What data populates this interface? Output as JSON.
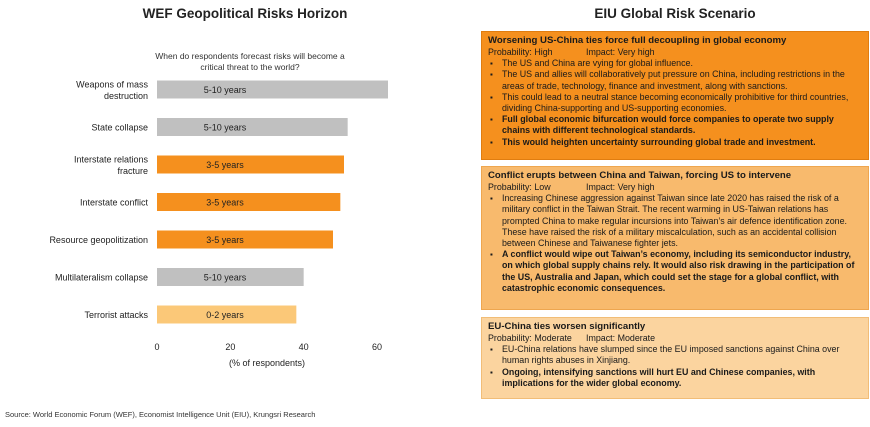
{
  "left_title": "WEF Geopolitical Risks Horizon",
  "right_title": "EIU Global Risk Scenario",
  "source": "Source: World Economic Forum (WEF), Economist Intelligence Unit (EIU), Krungsri Research",
  "chart_data": {
    "type": "bar",
    "orientation": "horizontal",
    "subtitle": "When do respondents forecast risks will become a critical threat to the world?",
    "xlabel": "(% of respondents)",
    "xlim": [
      0,
      60
    ],
    "xticks": [
      "0",
      "20",
      "40",
      "60"
    ],
    "grid": false,
    "categories": [
      {
        "label": "Weapons of mass destruction",
        "lines": [
          "Weapons of mass",
          "destruction"
        ],
        "value": 63,
        "horizon": "5-10 years",
        "color": "#c0c0c0"
      },
      {
        "label": "State collapse",
        "lines": [
          "State collapse"
        ],
        "value": 52,
        "horizon": "5-10 years",
        "color": "#c0c0c0"
      },
      {
        "label": "Interstate relations fracture",
        "lines": [
          "Interstate relations",
          "fracture"
        ],
        "value": 51,
        "horizon": "3-5 years",
        "color": "#f5901e"
      },
      {
        "label": "Interstate conflict",
        "lines": [
          "Interstate conflict"
        ],
        "value": 50,
        "horizon": "3-5 years",
        "color": "#f5901e"
      },
      {
        "label": "Resource geopolitization",
        "lines": [
          "Resource geopolitization"
        ],
        "value": 48,
        "horizon": "3-5 years",
        "color": "#f5901e"
      },
      {
        "label": "Multilateralism collapse",
        "lines": [
          "Multilateralism collapse"
        ],
        "value": 40,
        "horizon": "5-10 years",
        "color": "#c0c0c0"
      },
      {
        "label": "Terrorist attacks",
        "lines": [
          "Terrorist attacks"
        ],
        "value": 38,
        "horizon": "0-2 years",
        "color": "#fbc878"
      }
    ]
  },
  "scenarios": [
    {
      "title": "Worsening US-China ties force full decoupling in global economy",
      "probability": "Probability: High",
      "impact": "Impact: Very high",
      "color": "#f5901e",
      "bullets": [
        {
          "text": "The US and China are vying for global influence.",
          "bold": false
        },
        {
          "text": "The US and allies will collaboratively put pressure on China, including restrictions in the areas of trade, technology, finance and investment, along with sanctions.",
          "bold": false
        },
        {
          "text": "This could lead to a neutral stance becoming economically prohibitive for third countries, dividing China-supporting and US-supporting economies.",
          "bold": false
        },
        {
          "text": "Full global economic bifurcation would force companies to operate two supply chains with different technological standards.",
          "bold": true
        },
        {
          "text": "This would heighten uncertainty surrounding global trade and investment.",
          "bold": true
        }
      ]
    },
    {
      "title": "Conflict erupts between China and Taiwan, forcing US to intervene",
      "probability": "Probability: Low",
      "impact": "Impact: Very high",
      "color": "#f8ba6d",
      "bullets": [
        {
          "text": "Increasing Chinese aggression against Taiwan since late 2020 has raised the risk of a military conflict in the Taiwan Strait. The recent warming in US-Taiwan relations has prompted China to make regular incursions into Taiwan’s air defence identification zone. These have raised the risk of a military miscalculation, such as an accidental collision between Chinese and Taiwanese fighter jets.",
          "bold": false
        },
        {
          "text": "A conflict would wipe out Taiwan’s economy, including its semiconductor industry, on which global supply chains rely. It would also risk drawing in the participation of the US, Australia and Japan, which could set the stage for a global conflict, with catastrophic economic consequences.",
          "bold": true
        }
      ]
    },
    {
      "title": "EU-China ties worsen significantly",
      "probability": "Probability: Moderate",
      "impact": "Impact: Moderate",
      "color": "#fbd49f",
      "bullets": [
        {
          "text": "EU-China relations have slumped since the EU imposed sanctions against China over human rights abuses in Xinjiang.",
          "bold": false
        },
        {
          "text": "Ongoing, intensifying sanctions will hurt EU and Chinese companies, with implications for the wider global economy.",
          "bold": true
        }
      ]
    }
  ]
}
